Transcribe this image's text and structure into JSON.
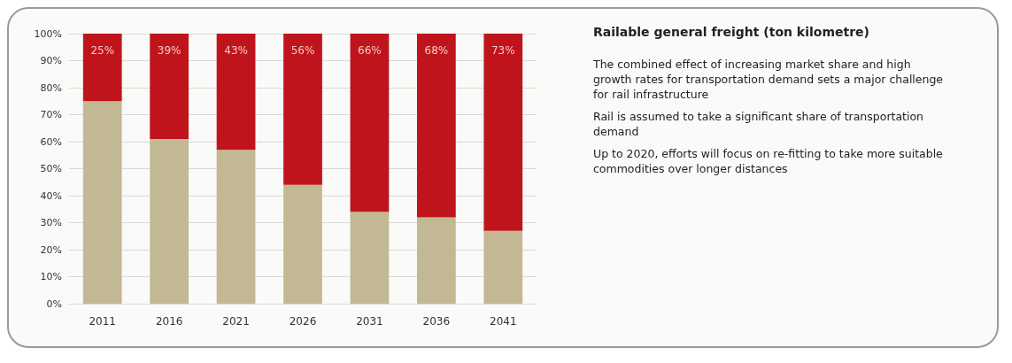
{
  "chart_data": {
    "type": "bar",
    "stacked": true,
    "title": "Railable general freight (ton kilometre)",
    "categories": [
      "2011",
      "2016",
      "2021",
      "2026",
      "2031",
      "2036",
      "2041"
    ],
    "series": [
      {
        "color": "#c3b894",
        "values": [
          75,
          61,
          57,
          44,
          34,
          32,
          27
        ]
      },
      {
        "color": "#c0141c",
        "values": [
          25,
          39,
          43,
          56,
          66,
          68,
          73
        ],
        "value_labels": [
          "25%",
          "39%",
          "43%",
          "56%",
          "66%",
          "68%",
          "73%"
        ]
      }
    ],
    "ylim": [
      0,
      100
    ],
    "yticks": [
      {
        "value": 0,
        "label": "0%"
      },
      {
        "value": 10,
        "label": "10%"
      },
      {
        "value": 20,
        "label": "20%"
      },
      {
        "value": 30,
        "label": "30%"
      },
      {
        "value": 40,
        "label": "40%"
      },
      {
        "value": 50,
        "label": "50%"
      },
      {
        "value": 60,
        "label": "60%"
      },
      {
        "value": 70,
        "label": "70%"
      },
      {
        "value": 80,
        "label": "80%"
      },
      {
        "value": 90,
        "label": "90%"
      },
      {
        "value": 100,
        "label": "100%"
      }
    ],
    "grid": "y",
    "annotations": [
      "The combined effect of increasing market share and high growth rates for transportation demand sets a major challenge for rail infrastructure",
      "Rail is assumed to take a significant share of transportation demand",
      "Up to 2020, efforts will focus on re-fitting to take more suitable commodities over longer distances"
    ]
  }
}
